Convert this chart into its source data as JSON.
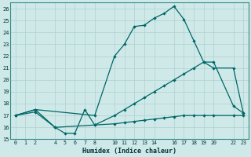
{
  "xlabel": "Humidex (Indice chaleur)",
  "background_color": "#cfe9e9",
  "grid_color": "#b0d0d0",
  "line_color": "#006666",
  "xlim": [
    -0.5,
    23.5
  ],
  "ylim": [
    15,
    26.5
  ],
  "xticks": [
    0,
    1,
    2,
    4,
    5,
    6,
    7,
    8,
    10,
    11,
    12,
    13,
    14,
    16,
    17,
    18,
    19,
    20,
    22,
    23
  ],
  "yticks": [
    15,
    16,
    17,
    18,
    19,
    20,
    21,
    22,
    23,
    24,
    25,
    26
  ],
  "line_top_x": [
    0,
    2,
    8,
    10,
    11,
    12,
    13,
    14,
    15,
    16,
    17,
    18,
    19,
    20,
    22,
    23
  ],
  "line_top_y": [
    17,
    17.5,
    17,
    22,
    23,
    24.5,
    24.6,
    25.2,
    25.6,
    26.2,
    25.1,
    23.3,
    21.5,
    21.5,
    17.8,
    17.2
  ],
  "line_mid_x": [
    0,
    2,
    4,
    8,
    10,
    11,
    12,
    13,
    14,
    15,
    16,
    17,
    18,
    19,
    20,
    22,
    23
  ],
  "line_mid_y": [
    17,
    17.5,
    16.0,
    16.2,
    17.0,
    17.5,
    18.0,
    18.5,
    19.0,
    19.5,
    20.0,
    20.5,
    21.0,
    21.5,
    21.0,
    21.0,
    17.2
  ],
  "line_bot_x": [
    0,
    2,
    4,
    5,
    6,
    7,
    8,
    10,
    11,
    12,
    13,
    14,
    15,
    16,
    17,
    18,
    19,
    20,
    22,
    23
  ],
  "line_bot_y": [
    17,
    17.3,
    16.0,
    15.5,
    15.5,
    17.5,
    16.2,
    16.3,
    16.4,
    16.5,
    16.6,
    16.7,
    16.8,
    16.9,
    17.0,
    17.0,
    17.0,
    17.0,
    17.0,
    17.0
  ]
}
